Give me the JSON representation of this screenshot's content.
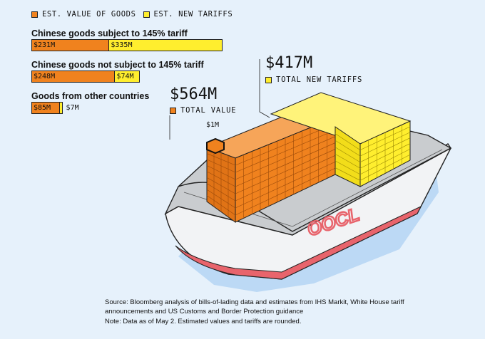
{
  "legend": {
    "value_label": "EST. VALUE OF GOODS",
    "tariff_label": "EST. NEW TARIFFS"
  },
  "colors": {
    "value": "#f0821e",
    "tariff": "#ffee2e",
    "background": "#e6f1fb",
    "hull_stripe": "#e8646c"
  },
  "chart_data": {
    "type": "bar",
    "orientation": "horizontal-stacked",
    "series": [
      {
        "name": "EST. VALUE OF GOODS"
      },
      {
        "name": "EST. NEW TARIFFS"
      }
    ],
    "categories": [
      {
        "title": "Chinese goods subject to 145% tariff",
        "value": 231,
        "tariff": 335,
        "value_label": "$231M",
        "tariff_label": "$335M"
      },
      {
        "title": "Chinese goods not subject to 145% tariff",
        "value": 248,
        "tariff": 74,
        "value_label": "$248M",
        "tariff_label": "$74M"
      },
      {
        "title": "Goods from other countries",
        "value": 85,
        "tariff": 7,
        "value_label": "$85M",
        "tariff_label": "$7M"
      }
    ],
    "unit": "$M"
  },
  "totals": {
    "value_amount": "$564M",
    "value_caption": "TOTAL VALUE",
    "tariff_amount": "$417M",
    "tariff_caption": "TOTAL NEW TARIFFS",
    "block_label": "$1M"
  },
  "ship": {
    "brand": "OOCL"
  },
  "footer": {
    "source": "Source: Bloomberg analysis of bills-of-lading data and estimates from IHS Markit, White House tariff announcements and US Customs and Border Protection guidance",
    "note": "Note: Data as of May 2. Estimated values and tariffs are rounded."
  }
}
